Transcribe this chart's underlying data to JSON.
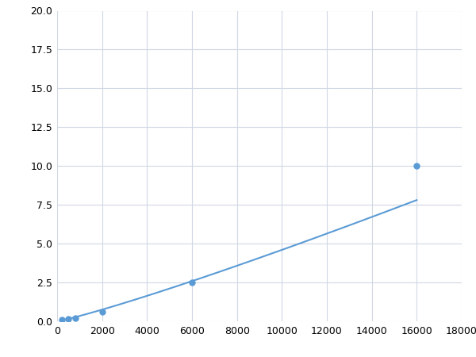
{
  "x_points": [
    200,
    500,
    800,
    2000,
    6000,
    16000
  ],
  "y_points": [
    0.08,
    0.15,
    0.2,
    0.6,
    2.5,
    10.0
  ],
  "line_color": "#5b9bd5",
  "marker_color": "#5b9bd5",
  "marker_size": 5,
  "xlim": [
    0,
    18000
  ],
  "ylim": [
    0,
    20.0
  ],
  "xticks": [
    0,
    2000,
    4000,
    6000,
    8000,
    10000,
    12000,
    14000,
    16000,
    18000
  ],
  "yticks": [
    0.0,
    2.5,
    5.0,
    7.5,
    10.0,
    12.5,
    15.0,
    17.5,
    20.0
  ],
  "grid_color": "#d0d8e4",
  "background_color": "#ffffff",
  "tick_label_fontsize": 9,
  "figsize": [
    6.0,
    4.5
  ],
  "dpi": 100
}
